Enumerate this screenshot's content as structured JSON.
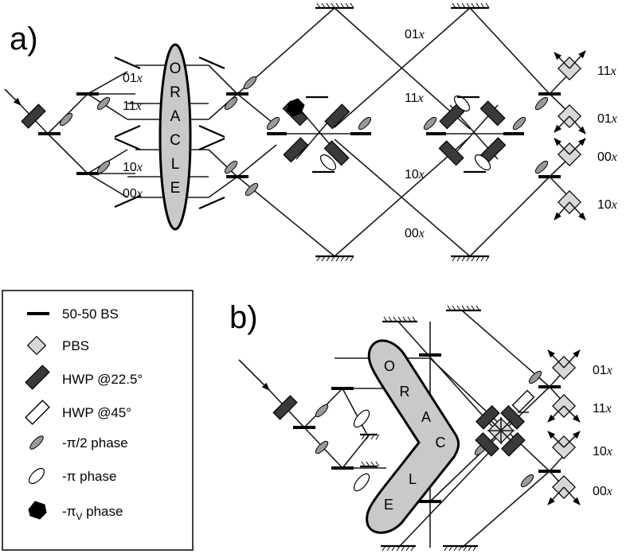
{
  "panel_a": {
    "label": "a)",
    "oracle_letters": [
      "O",
      "R",
      "A",
      "C",
      "L",
      "E"
    ],
    "left_port_labels": [
      "01",
      "11",
      "10",
      "00"
    ],
    "mid_labels": [
      "01",
      "11",
      "10",
      "00"
    ],
    "output_labels": [
      "11",
      "01",
      "00",
      "10"
    ],
    "x_suffix": "x"
  },
  "panel_b": {
    "label": "b)",
    "oracle_letters": [
      "O",
      "R",
      "A",
      "C",
      "L",
      "E"
    ],
    "output_labels": [
      "01",
      "11",
      "10",
      "00"
    ],
    "x_suffix": "x"
  },
  "legend": {
    "items": [
      {
        "symbol": "beam-splitter",
        "text": "50-50 BS"
      },
      {
        "symbol": "pbs",
        "text": "PBS"
      },
      {
        "symbol": "hwp-22",
        "text": "HWP @22.5°"
      },
      {
        "symbol": "hwp-45",
        "text": "HWP @45°"
      },
      {
        "symbol": "phase-half-pi",
        "text": "-π/2 phase"
      },
      {
        "symbol": "phase-pi",
        "text": "-π phase"
      },
      {
        "symbol": "phase-pi-v",
        "text": "-π"
      }
    ],
    "phase_v_subscript": "V",
    "phase_v_tail": " phase"
  }
}
